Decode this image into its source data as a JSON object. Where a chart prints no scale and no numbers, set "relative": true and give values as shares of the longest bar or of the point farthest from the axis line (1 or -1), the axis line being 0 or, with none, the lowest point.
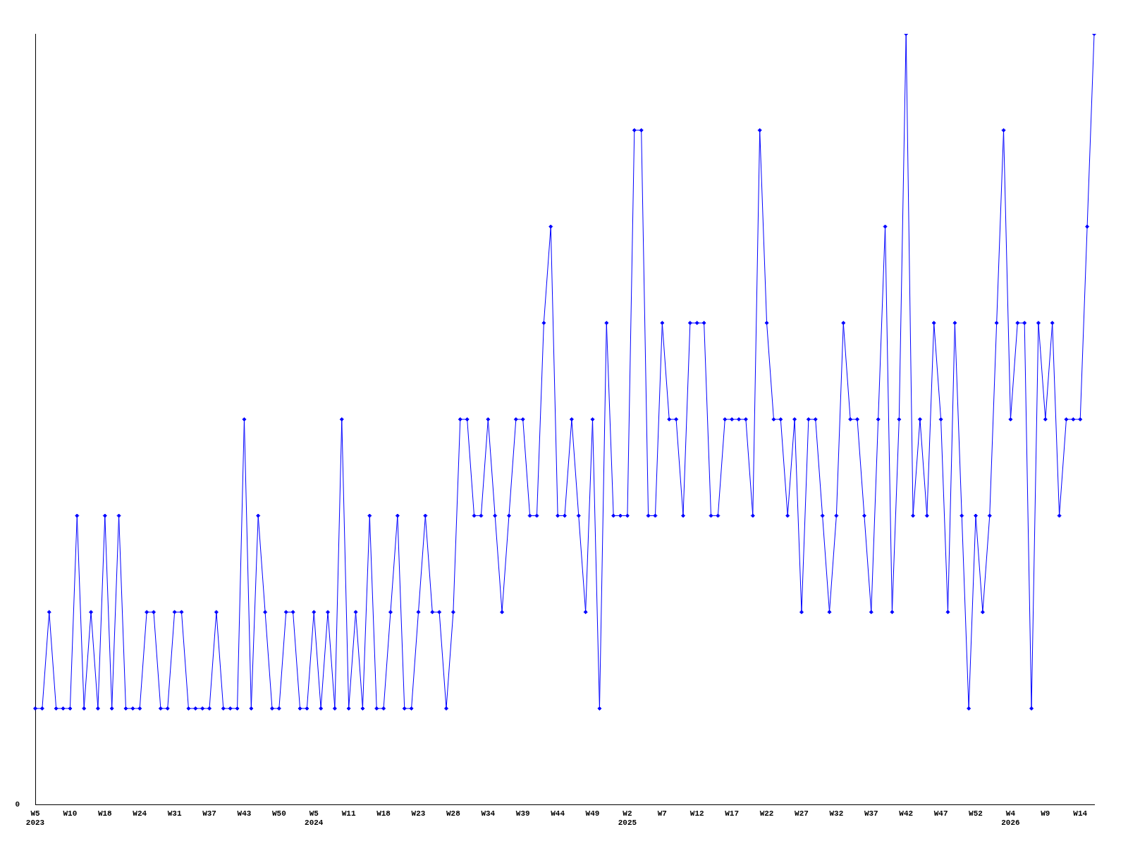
{
  "chart_data": {
    "type": "line",
    "relative": true,
    "color": "#0000ff",
    "marker": "diamond",
    "grid": false,
    "legend": false,
    "categories": [
      "W5\n2023",
      null,
      null,
      null,
      null,
      "W10",
      null,
      null,
      null,
      null,
      "W18",
      null,
      null,
      null,
      null,
      "W24",
      null,
      null,
      null,
      null,
      "W31",
      null,
      null,
      null,
      null,
      "W37",
      null,
      null,
      null,
      null,
      "W43",
      null,
      null,
      null,
      null,
      "W50",
      null,
      null,
      null,
      null,
      "W5\n2024",
      null,
      null,
      null,
      null,
      "W11",
      null,
      null,
      null,
      null,
      "W18",
      null,
      null,
      null,
      null,
      "W23",
      null,
      null,
      null,
      null,
      "W28",
      null,
      null,
      null,
      null,
      "W34",
      null,
      null,
      null,
      null,
      "W39",
      null,
      null,
      null,
      null,
      "W44",
      null,
      null,
      null,
      null,
      "W49",
      null,
      null,
      null,
      null,
      "W2\n2025",
      null,
      null,
      null,
      null,
      "W7",
      null,
      null,
      null,
      null,
      "W12",
      null,
      null,
      null,
      null,
      "W17",
      null,
      null,
      null,
      null,
      "W22",
      null,
      null,
      null,
      null,
      "W27",
      null,
      null,
      null,
      null,
      "W32",
      null,
      null,
      null,
      null,
      "W37",
      null,
      null,
      null,
      null,
      "W42",
      null,
      null,
      null,
      null,
      "W47",
      null,
      null,
      null,
      null,
      "W52",
      null,
      null,
      null,
      null,
      "W4\n2026",
      null,
      null,
      null,
      null,
      "W9",
      null,
      null,
      null,
      null,
      "W14",
      null,
      null
    ],
    "values": [
      0.125,
      0.125,
      0.25,
      0.125,
      0.125,
      0.125,
      0.375,
      0.125,
      0.25,
      0.125,
      0.375,
      0.125,
      0.375,
      0.125,
      0.125,
      0.125,
      0.25,
      0.25,
      0.125,
      0.125,
      0.25,
      0.25,
      0.125,
      0.125,
      0.125,
      0.125,
      0.25,
      0.125,
      0.125,
      0.125,
      0.5,
      0.125,
      0.375,
      0.25,
      0.125,
      0.125,
      0.25,
      0.25,
      0.125,
      0.125,
      0.25,
      0.125,
      0.25,
      0.125,
      0.5,
      0.125,
      0.25,
      0.125,
      0.375,
      0.125,
      0.125,
      0.25,
      0.375,
      0.125,
      0.125,
      0.25,
      0.375,
      0.25,
      0.25,
      0.125,
      0.25,
      0.5,
      0.5,
      0.375,
      0.375,
      0.5,
      0.375,
      0.25,
      0.375,
      0.5,
      0.5,
      0.375,
      0.375,
      0.625,
      0.75,
      0.375,
      0.375,
      0.5,
      0.375,
      0.25,
      0.5,
      0.125,
      0.625,
      0.375,
      0.375,
      0.375,
      0.875,
      0.875,
      0.375,
      0.375,
      0.625,
      0.5,
      0.5,
      0.375,
      0.625,
      0.625,
      0.625,
      0.375,
      0.375,
      0.5,
      0.5,
      0.5,
      0.5,
      0.375,
      0.875,
      0.625,
      0.5,
      0.5,
      0.375,
      0.5,
      0.25,
      0.5,
      0.5,
      0.375,
      0.25,
      0.375,
      0.625,
      0.5,
      0.5,
      0.375,
      0.25,
      0.5,
      0.75,
      0.25,
      0.5,
      1,
      0.375,
      0.5,
      0.375,
      0.625,
      0.5,
      0.25,
      0.625,
      0.375,
      0.125,
      0.375,
      0.25,
      0.375,
      0.625,
      0.875,
      0.5,
      0.625,
      0.625,
      0.125,
      0.625,
      0.5,
      0.625,
      0.375,
      0.5,
      0.5,
      0.5,
      0.75,
      1
    ],
    "annotations": [
      "0"
    ]
  }
}
